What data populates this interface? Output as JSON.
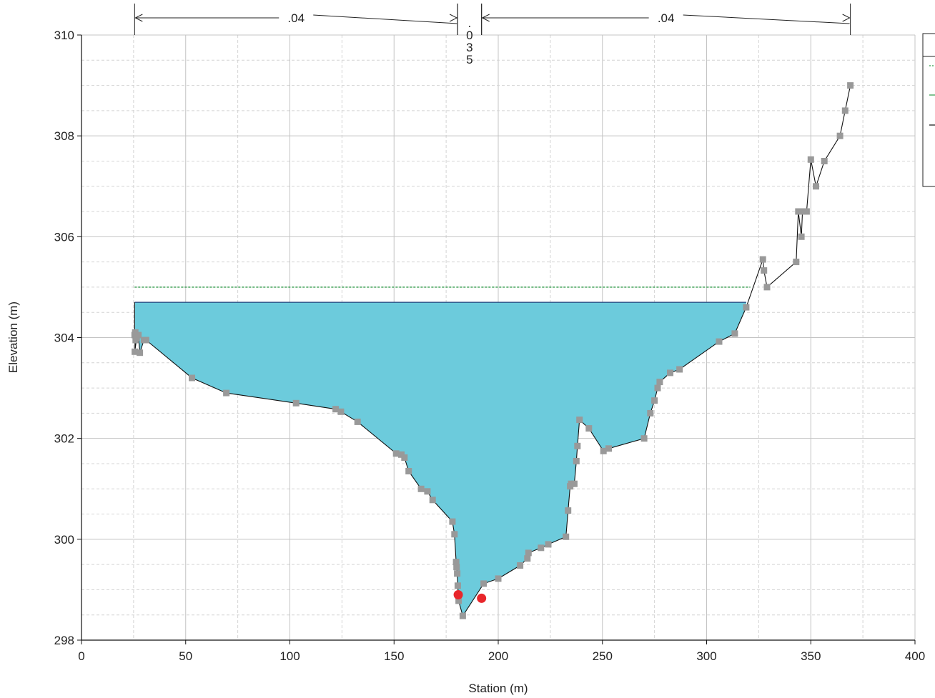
{
  "chart_data": {
    "type": "line",
    "xlabel": "Station (m)",
    "ylabel": "Elevation (m)",
    "xlim": [
      0,
      400
    ],
    "ylim": [
      298,
      310
    ],
    "x_ticks": [
      "0",
      "50",
      "100",
      "150",
      "200",
      "250",
      "300",
      "350",
      "400"
    ],
    "y_ticks": [
      "298",
      "300",
      "302",
      "304",
      "306",
      "308",
      "310"
    ],
    "grid": true,
    "legend": "top-right",
    "colors": {
      "water_fill": "#6ccbdc",
      "ground_line": "#111111",
      "ground_points": "#999999",
      "energy_grade": "#2e9a48",
      "bank_stations": "#e8262b"
    },
    "manning_n": [
      {
        "label": ".04",
        "from": 25.5,
        "to": 180.5
      },
      {
        "label": ".035",
        "from": 180.5,
        "to": 192
      },
      {
        "label": ".04",
        "from": 192,
        "to": 369
      }
    ],
    "water_surface": {
      "elevation": 304.7,
      "from": 25.5,
      "to": 319
    },
    "energy_grade_line": {
      "elevation": 305.0,
      "from": 25.5,
      "to": 321
    },
    "bank_stations": [
      {
        "x": 180.8,
        "y": 298.9
      },
      {
        "x": 192.0,
        "y": 298.83
      }
    ],
    "ground": [
      [
        25.5,
        304.05
      ],
      [
        26.0,
        303.95
      ],
      [
        25.8,
        304.1
      ],
      [
        25.6,
        303.72
      ],
      [
        26.5,
        304.0
      ],
      [
        27.3,
        304.05
      ],
      [
        28.0,
        303.7
      ],
      [
        30.0,
        303.95
      ],
      [
        31.0,
        303.95
      ],
      [
        53.0,
        303.2
      ],
      [
        69.5,
        302.9
      ],
      [
        103.0,
        302.7
      ],
      [
        122.0,
        302.58
      ],
      [
        124.5,
        302.53
      ],
      [
        132.5,
        302.33
      ],
      [
        151.0,
        301.7
      ],
      [
        153.5,
        301.68
      ],
      [
        155.0,
        301.62
      ],
      [
        157.0,
        301.35
      ],
      [
        163.0,
        301.0
      ],
      [
        166.0,
        300.95
      ],
      [
        168.5,
        300.78
      ],
      [
        178.0,
        300.35
      ],
      [
        179.0,
        300.1
      ],
      [
        179.8,
        299.55
      ],
      [
        180.0,
        299.45
      ],
      [
        180.3,
        299.32
      ],
      [
        180.6,
        299.08
      ],
      [
        181.0,
        298.78
      ],
      [
        183.0,
        298.48
      ],
      [
        193.0,
        299.12
      ],
      [
        200.0,
        299.22
      ],
      [
        210.5,
        299.48
      ],
      [
        214.0,
        299.62
      ],
      [
        214.5,
        299.73
      ],
      [
        220.5,
        299.83
      ],
      [
        224.0,
        299.9
      ],
      [
        232.5,
        300.05
      ],
      [
        233.5,
        300.57
      ],
      [
        234.5,
        301.05
      ],
      [
        235.0,
        301.1
      ],
      [
        236.5,
        301.1
      ],
      [
        237.5,
        301.55
      ],
      [
        238.0,
        301.85
      ],
      [
        239.0,
        302.37
      ],
      [
        243.5,
        302.2
      ],
      [
        250.5,
        301.75
      ],
      [
        253.0,
        301.8
      ],
      [
        270.0,
        302.0
      ],
      [
        273.0,
        302.5
      ],
      [
        275.0,
        302.75
      ],
      [
        276.5,
        303.0
      ],
      [
        277.5,
        303.12
      ],
      [
        282.5,
        303.3
      ],
      [
        287.0,
        303.37
      ],
      [
        306.0,
        303.92
      ],
      [
        313.5,
        304.08
      ],
      [
        319.0,
        304.6
      ],
      [
        327.0,
        305.55
      ],
      [
        327.5,
        305.33
      ],
      [
        329.0,
        305.0
      ],
      [
        343.0,
        305.5
      ],
      [
        344.0,
        306.5
      ],
      [
        345.5,
        306.0
      ],
      [
        346.0,
        306.5
      ],
      [
        348.0,
        306.5
      ],
      [
        350.0,
        307.53
      ],
      [
        352.5,
        307.0
      ],
      [
        356.5,
        307.5
      ],
      [
        364.0,
        308.0
      ],
      [
        366.5,
        308.5
      ],
      [
        369.0,
        309.0
      ]
    ]
  }
}
